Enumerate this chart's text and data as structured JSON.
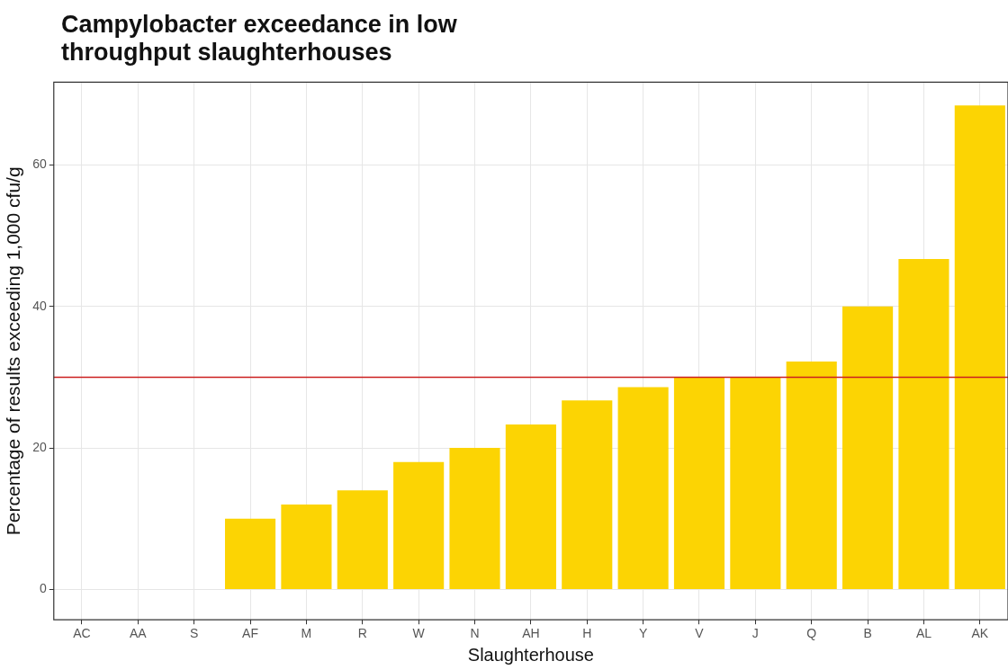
{
  "chart_data": {
    "type": "bar",
    "title": "Campylobacter exceedance in low throughput slaughterhouses",
    "xlabel": "Slaughterhouse",
    "ylabel": "Percentage of results exceeding 1,000 cfu/g",
    "categories": [
      "AC",
      "AA",
      "S",
      "AF",
      "M",
      "R",
      "W",
      "N",
      "AH",
      "H",
      "Y",
      "V",
      "J",
      "Q",
      "B",
      "AL",
      "AK"
    ],
    "values": [
      0,
      0,
      0,
      10,
      12,
      14,
      18,
      20,
      23.3,
      26.7,
      28.6,
      30,
      30,
      32.2,
      40,
      46.7,
      68.4
    ],
    "color": "#fcd403",
    "ylim": [
      -4.3,
      71.7
    ],
    "yticks": [
      0,
      20,
      40,
      60
    ],
    "grid": true,
    "ref_lines": [
      {
        "axis": "y",
        "value": 30,
        "color": "#cc1f1f"
      }
    ]
  }
}
